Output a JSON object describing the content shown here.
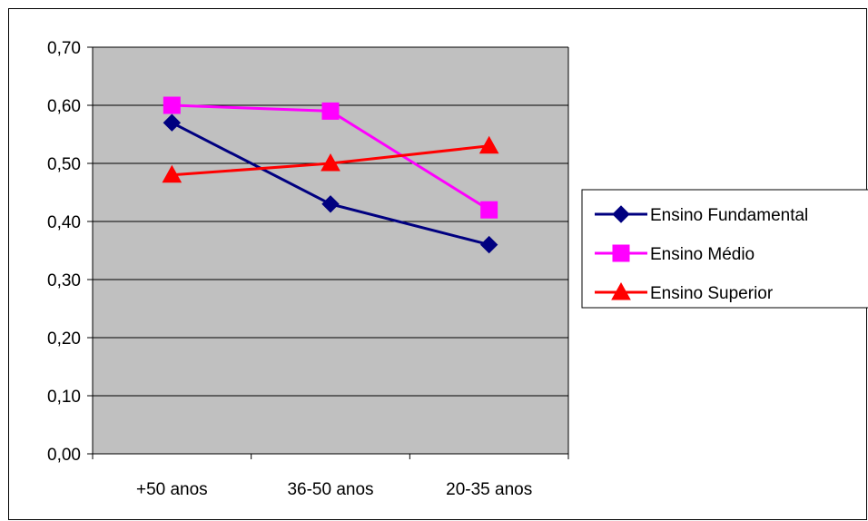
{
  "chart_data": {
    "type": "line",
    "title": "",
    "xlabel": "",
    "ylabel": "",
    "categories": [
      "+50 anos",
      "36-50 anos",
      "20-35 anos"
    ],
    "ylim": [
      0,
      0.7
    ],
    "yticks": [
      "0,00",
      "0,10",
      "0,20",
      "0,30",
      "0,40",
      "0,50",
      "0,60",
      "0,70"
    ],
    "grid": true,
    "plot_background": "#c0c0c0",
    "legend_position": "right",
    "series": [
      {
        "name": "Ensino Fundamental",
        "values": [
          0.57,
          0.43,
          0.36
        ],
        "color": "#000080",
        "marker": "diamond"
      },
      {
        "name": "Ensino Médio",
        "values": [
          0.6,
          0.59,
          0.42
        ],
        "color": "#ff00ff",
        "marker": "square"
      },
      {
        "name": "Ensino Superior",
        "values": [
          0.48,
          0.5,
          0.53
        ],
        "color": "#ff0000",
        "marker": "triangle"
      }
    ]
  }
}
